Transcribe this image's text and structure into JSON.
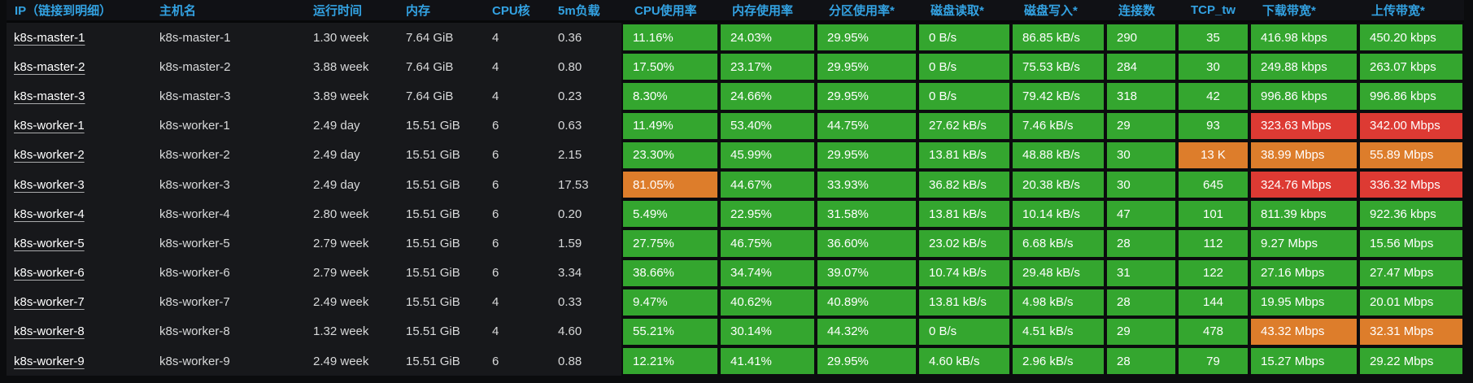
{
  "palette": {
    "green": "#34a62f",
    "orange": "#dd7d2b",
    "red": "#dd3a33"
  },
  "ui_colors": {
    "panel_bg": "#0b0c0e",
    "header_bg": "#101115",
    "row_bg": "#17181b",
    "header_text": "#33a2e2",
    "body_text": "#d8d9da",
    "link_text": "#ffffff",
    "cell_text": "#ffffff"
  },
  "table": {
    "columns": [
      {
        "key": "ip",
        "label": "IP（链接到明细）"
      },
      {
        "key": "hostname",
        "label": "主机名"
      },
      {
        "key": "uptime",
        "label": "运行时间"
      },
      {
        "key": "memory",
        "label": "内存"
      },
      {
        "key": "cpu_cores",
        "label": "CPU核"
      },
      {
        "key": "load_5m",
        "label": "5m负载"
      },
      {
        "key": "cpu_usage",
        "label": "CPU使用率"
      },
      {
        "key": "mem_usage",
        "label": "内存使用率"
      },
      {
        "key": "partition_usage",
        "label": "分区使用率*"
      },
      {
        "key": "disk_read",
        "label": "磁盘读取*"
      },
      {
        "key": "disk_write",
        "label": "磁盘写入*"
      },
      {
        "key": "connections",
        "label": "连接数"
      },
      {
        "key": "tcp_tw",
        "label": "TCP_tw"
      },
      {
        "key": "download_bw",
        "label": "下载带宽*"
      },
      {
        "key": "upload_bw",
        "label": "上传带宽*"
      }
    ],
    "rows": [
      {
        "ip": "k8s-master-1",
        "hostname": "k8s-master-1",
        "uptime": "1.30 week",
        "memory": "7.64 GiB",
        "cpu_cores": "4",
        "load_5m": "0.36",
        "cpu_usage": {
          "text": "11.16%",
          "color": "green"
        },
        "mem_usage": {
          "text": "24.03%",
          "color": "green"
        },
        "partition_usage": {
          "text": "29.95%",
          "color": "green"
        },
        "disk_read": {
          "text": "0 B/s",
          "color": "green"
        },
        "disk_write": {
          "text": "86.85 kB/s",
          "color": "green"
        },
        "connections": {
          "text": "290",
          "color": "green"
        },
        "tcp_tw": {
          "text": "35",
          "color": "green"
        },
        "download_bw": {
          "text": "416.98 kbps",
          "color": "green"
        },
        "upload_bw": {
          "text": "450.20 kbps",
          "color": "green"
        }
      },
      {
        "ip": "k8s-master-2",
        "hostname": "k8s-master-2",
        "uptime": "3.88 week",
        "memory": "7.64 GiB",
        "cpu_cores": "4",
        "load_5m": "0.80",
        "cpu_usage": {
          "text": "17.50%",
          "color": "green"
        },
        "mem_usage": {
          "text": "23.17%",
          "color": "green"
        },
        "partition_usage": {
          "text": "29.95%",
          "color": "green"
        },
        "disk_read": {
          "text": "0 B/s",
          "color": "green"
        },
        "disk_write": {
          "text": "75.53 kB/s",
          "color": "green"
        },
        "connections": {
          "text": "284",
          "color": "green"
        },
        "tcp_tw": {
          "text": "30",
          "color": "green"
        },
        "download_bw": {
          "text": "249.88 kbps",
          "color": "green"
        },
        "upload_bw": {
          "text": "263.07 kbps",
          "color": "green"
        }
      },
      {
        "ip": "k8s-master-3",
        "hostname": "k8s-master-3",
        "uptime": "3.89 week",
        "memory": "7.64 GiB",
        "cpu_cores": "4",
        "load_5m": "0.23",
        "cpu_usage": {
          "text": "8.30%",
          "color": "green"
        },
        "mem_usage": {
          "text": "24.66%",
          "color": "green"
        },
        "partition_usage": {
          "text": "29.95%",
          "color": "green"
        },
        "disk_read": {
          "text": "0 B/s",
          "color": "green"
        },
        "disk_write": {
          "text": "79.42 kB/s",
          "color": "green"
        },
        "connections": {
          "text": "318",
          "color": "green"
        },
        "tcp_tw": {
          "text": "42",
          "color": "green"
        },
        "download_bw": {
          "text": "996.86 kbps",
          "color": "green"
        },
        "upload_bw": {
          "text": "996.86 kbps",
          "color": "green"
        }
      },
      {
        "ip": "k8s-worker-1",
        "hostname": "k8s-worker-1",
        "uptime": "2.49 day",
        "memory": "15.51 GiB",
        "cpu_cores": "6",
        "load_5m": "0.63",
        "cpu_usage": {
          "text": "11.49%",
          "color": "green"
        },
        "mem_usage": {
          "text": "53.40%",
          "color": "green"
        },
        "partition_usage": {
          "text": "44.75%",
          "color": "green"
        },
        "disk_read": {
          "text": "27.62 kB/s",
          "color": "green"
        },
        "disk_write": {
          "text": "7.46 kB/s",
          "color": "green"
        },
        "connections": {
          "text": "29",
          "color": "green"
        },
        "tcp_tw": {
          "text": "93",
          "color": "green"
        },
        "download_bw": {
          "text": "323.63 Mbps",
          "color": "red"
        },
        "upload_bw": {
          "text": "342.00 Mbps",
          "color": "red"
        }
      },
      {
        "ip": "k8s-worker-2",
        "hostname": "k8s-worker-2",
        "uptime": "2.49 day",
        "memory": "15.51 GiB",
        "cpu_cores": "6",
        "load_5m": "2.15",
        "cpu_usage": {
          "text": "23.30%",
          "color": "green"
        },
        "mem_usage": {
          "text": "45.99%",
          "color": "green"
        },
        "partition_usage": {
          "text": "29.95%",
          "color": "green"
        },
        "disk_read": {
          "text": "13.81 kB/s",
          "color": "green"
        },
        "disk_write": {
          "text": "48.88 kB/s",
          "color": "green"
        },
        "connections": {
          "text": "30",
          "color": "green"
        },
        "tcp_tw": {
          "text": "13 K",
          "color": "orange"
        },
        "download_bw": {
          "text": "38.99 Mbps",
          "color": "orange"
        },
        "upload_bw": {
          "text": "55.89 Mbps",
          "color": "orange"
        }
      },
      {
        "ip": "k8s-worker-3",
        "hostname": "k8s-worker-3",
        "uptime": "2.49 day",
        "memory": "15.51 GiB",
        "cpu_cores": "6",
        "load_5m": "17.53",
        "cpu_usage": {
          "text": "81.05%",
          "color": "orange"
        },
        "mem_usage": {
          "text": "44.67%",
          "color": "green"
        },
        "partition_usage": {
          "text": "33.93%",
          "color": "green"
        },
        "disk_read": {
          "text": "36.82 kB/s",
          "color": "green"
        },
        "disk_write": {
          "text": "20.38 kB/s",
          "color": "green"
        },
        "connections": {
          "text": "30",
          "color": "green"
        },
        "tcp_tw": {
          "text": "645",
          "color": "green"
        },
        "download_bw": {
          "text": "324.76 Mbps",
          "color": "red"
        },
        "upload_bw": {
          "text": "336.32 Mbps",
          "color": "red"
        }
      },
      {
        "ip": "k8s-worker-4",
        "hostname": "k8s-worker-4",
        "uptime": "2.80 week",
        "memory": "15.51 GiB",
        "cpu_cores": "6",
        "load_5m": "0.20",
        "cpu_usage": {
          "text": "5.49%",
          "color": "green"
        },
        "mem_usage": {
          "text": "22.95%",
          "color": "green"
        },
        "partition_usage": {
          "text": "31.58%",
          "color": "green"
        },
        "disk_read": {
          "text": "13.81 kB/s",
          "color": "green"
        },
        "disk_write": {
          "text": "10.14 kB/s",
          "color": "green"
        },
        "connections": {
          "text": "47",
          "color": "green"
        },
        "tcp_tw": {
          "text": "101",
          "color": "green"
        },
        "download_bw": {
          "text": "811.39 kbps",
          "color": "green"
        },
        "upload_bw": {
          "text": "922.36 kbps",
          "color": "green"
        }
      },
      {
        "ip": "k8s-worker-5",
        "hostname": "k8s-worker-5",
        "uptime": "2.79 week",
        "memory": "15.51 GiB",
        "cpu_cores": "6",
        "load_5m": "1.59",
        "cpu_usage": {
          "text": "27.75%",
          "color": "green"
        },
        "mem_usage": {
          "text": "46.75%",
          "color": "green"
        },
        "partition_usage": {
          "text": "36.60%",
          "color": "green"
        },
        "disk_read": {
          "text": "23.02 kB/s",
          "color": "green"
        },
        "disk_write": {
          "text": "6.68 kB/s",
          "color": "green"
        },
        "connections": {
          "text": "28",
          "color": "green"
        },
        "tcp_tw": {
          "text": "112",
          "color": "green"
        },
        "download_bw": {
          "text": "9.27 Mbps",
          "color": "green"
        },
        "upload_bw": {
          "text": "15.56 Mbps",
          "color": "green"
        }
      },
      {
        "ip": "k8s-worker-6",
        "hostname": "k8s-worker-6",
        "uptime": "2.79 week",
        "memory": "15.51 GiB",
        "cpu_cores": "6",
        "load_5m": "3.34",
        "cpu_usage": {
          "text": "38.66%",
          "color": "green"
        },
        "mem_usage": {
          "text": "34.74%",
          "color": "green"
        },
        "partition_usage": {
          "text": "39.07%",
          "color": "green"
        },
        "disk_read": {
          "text": "10.74 kB/s",
          "color": "green"
        },
        "disk_write": {
          "text": "29.48 kB/s",
          "color": "green"
        },
        "connections": {
          "text": "31",
          "color": "green"
        },
        "tcp_tw": {
          "text": "122",
          "color": "green"
        },
        "download_bw": {
          "text": "27.16 Mbps",
          "color": "green"
        },
        "upload_bw": {
          "text": "27.47 Mbps",
          "color": "green"
        }
      },
      {
        "ip": "k8s-worker-7",
        "hostname": "k8s-worker-7",
        "uptime": "2.49 week",
        "memory": "15.51 GiB",
        "cpu_cores": "4",
        "load_5m": "0.33",
        "cpu_usage": {
          "text": "9.47%",
          "color": "green"
        },
        "mem_usage": {
          "text": "40.62%",
          "color": "green"
        },
        "partition_usage": {
          "text": "40.89%",
          "color": "green"
        },
        "disk_read": {
          "text": "13.81 kB/s",
          "color": "green"
        },
        "disk_write": {
          "text": "4.98 kB/s",
          "color": "green"
        },
        "connections": {
          "text": "28",
          "color": "green"
        },
        "tcp_tw": {
          "text": "144",
          "color": "green"
        },
        "download_bw": {
          "text": "19.95 Mbps",
          "color": "green"
        },
        "upload_bw": {
          "text": "20.01 Mbps",
          "color": "green"
        }
      },
      {
        "ip": "k8s-worker-8",
        "hostname": "k8s-worker-8",
        "uptime": "1.32 week",
        "memory": "15.51 GiB",
        "cpu_cores": "4",
        "load_5m": "4.60",
        "cpu_usage": {
          "text": "55.21%",
          "color": "green"
        },
        "mem_usage": {
          "text": "30.14%",
          "color": "green"
        },
        "partition_usage": {
          "text": "44.32%",
          "color": "green"
        },
        "disk_read": {
          "text": "0 B/s",
          "color": "green"
        },
        "disk_write": {
          "text": "4.51 kB/s",
          "color": "green"
        },
        "connections": {
          "text": "29",
          "color": "green"
        },
        "tcp_tw": {
          "text": "478",
          "color": "green"
        },
        "download_bw": {
          "text": "43.32 Mbps",
          "color": "orange"
        },
        "upload_bw": {
          "text": "32.31 Mbps",
          "color": "orange"
        }
      },
      {
        "ip": "k8s-worker-9",
        "hostname": "k8s-worker-9",
        "uptime": "2.49 week",
        "memory": "15.51 GiB",
        "cpu_cores": "6",
        "load_5m": "0.88",
        "cpu_usage": {
          "text": "12.21%",
          "color": "green"
        },
        "mem_usage": {
          "text": "41.41%",
          "color": "green"
        },
        "partition_usage": {
          "text": "29.95%",
          "color": "green"
        },
        "disk_read": {
          "text": "4.60 kB/s",
          "color": "green"
        },
        "disk_write": {
          "text": "2.96 kB/s",
          "color": "green"
        },
        "connections": {
          "text": "28",
          "color": "green"
        },
        "tcp_tw": {
          "text": "79",
          "color": "green"
        },
        "download_bw": {
          "text": "15.27 Mbps",
          "color": "green"
        },
        "upload_bw": {
          "text": "29.22 Mbps",
          "color": "green"
        }
      }
    ]
  }
}
